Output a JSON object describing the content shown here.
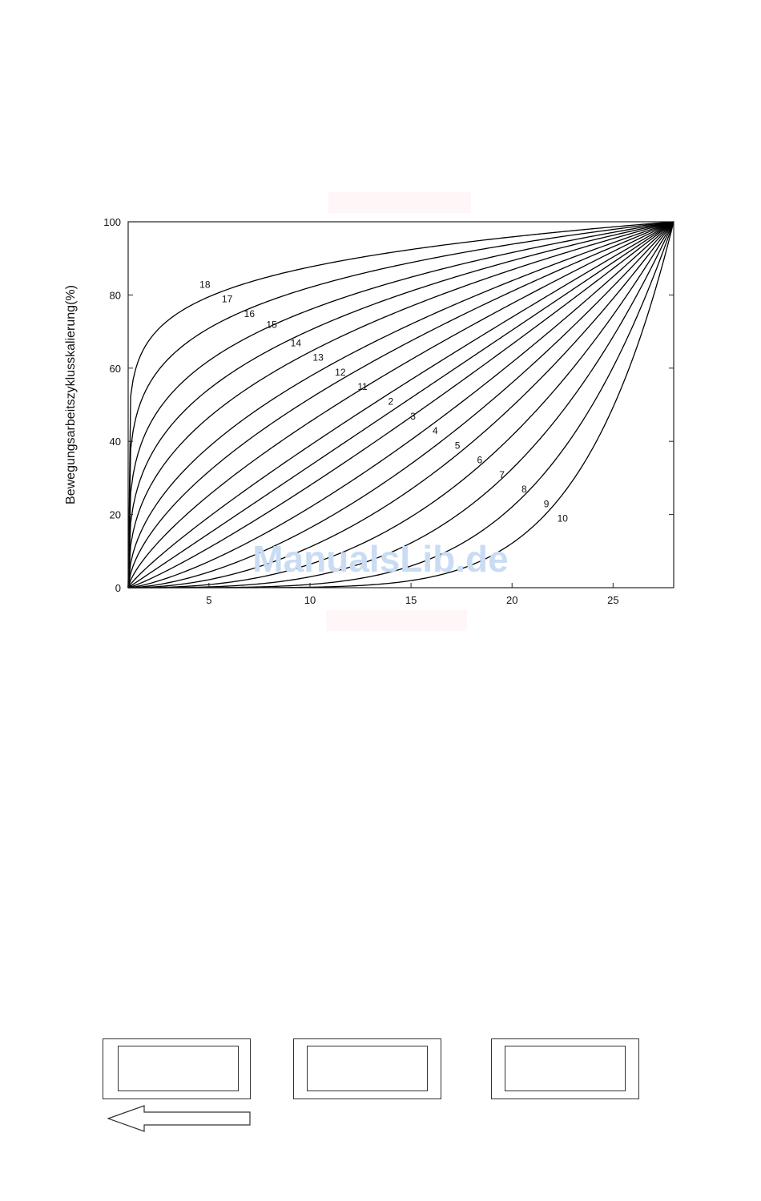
{
  "chart_data": {
    "type": "line",
    "title": "",
    "xlabel": "",
    "ylabel": "Bewegungsarbeitszyklusskalierung(%)",
    "xlim": [
      1,
      28
    ],
    "ylim": [
      0,
      100
    ],
    "x_ticks": [
      5,
      10,
      15,
      20,
      25
    ],
    "y_ticks": [
      0,
      20,
      40,
      60,
      80,
      100
    ],
    "grid": false,
    "series": [
      {
        "name": "18",
        "exponent": 0.12,
        "label_x": 4.8,
        "label_y": 82
      },
      {
        "name": "17",
        "exponent": 0.18,
        "label_x": 5.9,
        "label_y": 78
      },
      {
        "name": "16",
        "exponent": 0.25,
        "label_x": 7.0,
        "label_y": 74
      },
      {
        "name": "15",
        "exponent": 0.32,
        "label_x": 8.1,
        "label_y": 71
      },
      {
        "name": "14",
        "exponent": 0.4,
        "label_x": 9.3,
        "label_y": 66
      },
      {
        "name": "13",
        "exponent": 0.5,
        "label_x": 10.4,
        "label_y": 62
      },
      {
        "name": "12",
        "exponent": 0.6,
        "label_x": 11.5,
        "label_y": 58
      },
      {
        "name": "11",
        "exponent": 0.72,
        "label_x": 12.6,
        "label_y": 54
      },
      {
        "name": "2",
        "exponent": 0.86,
        "label_x": 14.0,
        "label_y": 50
      },
      {
        "name": "",
        "exponent": 1.0,
        "label_x": null,
        "label_y": null
      },
      {
        "name": "3",
        "exponent": 1.16,
        "label_x": 15.1,
        "label_y": 46
      },
      {
        "name": "4",
        "exponent": 1.38,
        "label_x": 16.2,
        "label_y": 42
      },
      {
        "name": "5",
        "exponent": 1.65,
        "label_x": 17.3,
        "label_y": 38
      },
      {
        "name": "6",
        "exponent": 2.0,
        "label_x": 18.4,
        "label_y": 34
      },
      {
        "name": "7",
        "exponent": 2.5,
        "label_x": 19.5,
        "label_y": 30
      },
      {
        "name": "8",
        "exponent": 3.2,
        "label_x": 20.6,
        "label_y": 26
      },
      {
        "name": "9",
        "exponent": 4.3,
        "label_x": 21.7,
        "label_y": 22
      },
      {
        "name": "10",
        "exponent": 6.0,
        "label_x": 22.5,
        "label_y": 18
      }
    ]
  },
  "watermark": "ManualsLib.de",
  "nav": {
    "boxes": [
      "",
      "",
      ""
    ],
    "arrow": "back-arrow-icon"
  }
}
